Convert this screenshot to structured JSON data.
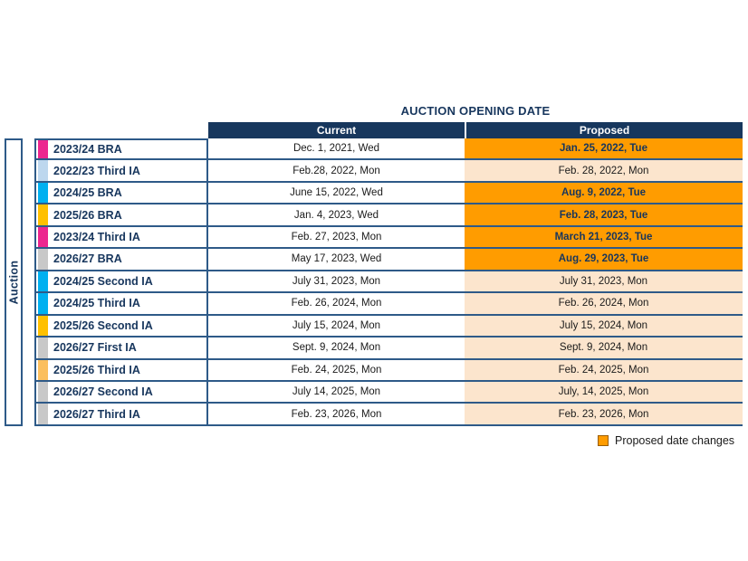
{
  "chart_data": {
    "type": "table",
    "title": "AUCTION OPENING DATE",
    "row_group_label": "Auction",
    "columns": {
      "current": "Current",
      "proposed": "Proposed"
    },
    "legend": {
      "label": "Proposed date changes",
      "swatch_color": "#FF9C00"
    },
    "colors": {
      "header_bg": "#17375D",
      "row_border": "#2E5A88",
      "navy_text": "#17365D",
      "changed_bg": "#FF9C00",
      "unchanged_bg": "#FCE5CD"
    },
    "rows": [
      {
        "label": "2023/24 BRA",
        "marker_color": "#EC268F",
        "current": "Dec. 1, 2021, Wed",
        "proposed": "Jan. 25, 2022, Tue",
        "changed": true
      },
      {
        "label": "2022/23 Third IA",
        "marker_color": "#BDD7EE",
        "current": "Feb.28, 2022, Mon",
        "proposed": "Feb. 28, 2022, Mon",
        "changed": false
      },
      {
        "label": "2024/25 BRA",
        "marker_color": "#00B0F0",
        "current": "June 15, 2022, Wed",
        "proposed": "Aug. 9, 2022, Tue",
        "changed": true
      },
      {
        "label": "2025/26 BRA",
        "marker_color": "#FFC000",
        "current": "Jan. 4, 2023, Wed",
        "proposed": "Feb. 28, 2023, Tue",
        "changed": true
      },
      {
        "label": "2023/24 Third IA",
        "marker_color": "#EC268F",
        "current": "Feb. 27, 2023, Mon",
        "proposed": "March 21, 2023, Tue",
        "changed": true
      },
      {
        "label": "2026/27 BRA",
        "marker_color": "#C8C8C8",
        "current": "May 17, 2023, Wed",
        "proposed": "Aug. 29, 2023, Tue",
        "changed": true
      },
      {
        "label": "2024/25 Second IA",
        "marker_color": "#00B0F0",
        "current": "July 31, 2023, Mon",
        "proposed": "July 31, 2023, Mon",
        "changed": false
      },
      {
        "label": "2024/25 Third IA",
        "marker_color": "#00B0F0",
        "current": "Feb. 26, 2024, Mon",
        "proposed": "Feb. 26, 2024, Mon",
        "changed": false
      },
      {
        "label": "2025/26 Second IA",
        "marker_color": "#FFC000",
        "current": "July 15, 2024, Mon",
        "proposed": "July 15, 2024, Mon",
        "changed": false
      },
      {
        "label": "2026/27 First IA",
        "marker_color": "#C8C8C8",
        "current": "Sept. 9, 2024, Mon",
        "proposed": "Sept. 9, 2024, Mon",
        "changed": false
      },
      {
        "label": "2025/26 Third IA",
        "marker_color": "#FBBF5E",
        "current": "Feb. 24, 2025, Mon",
        "proposed": "Feb. 24, 2025, Mon",
        "changed": false
      },
      {
        "label": "2026/27 Second IA",
        "marker_color": "#C8C8C8",
        "current": "July 14, 2025, Mon",
        "proposed": "July, 14, 2025, Mon",
        "changed": false
      },
      {
        "label": "2026/27 Third IA",
        "marker_color": "#C8C8C8",
        "current": "Feb. 23, 2026, Mon",
        "proposed": "Feb. 23, 2026, Mon",
        "changed": false
      }
    ]
  }
}
